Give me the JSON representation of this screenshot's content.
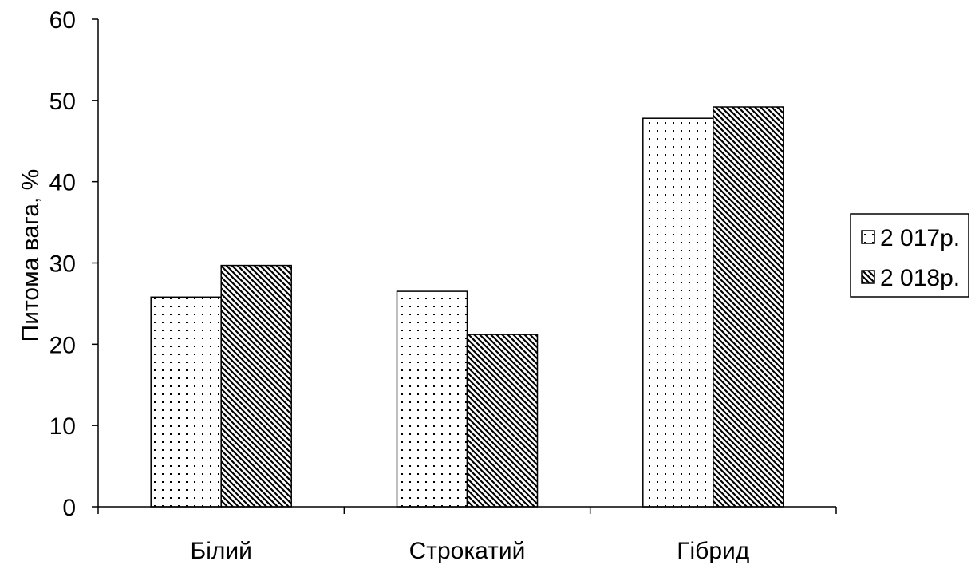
{
  "chart_data": {
    "type": "bar",
    "title": "",
    "xlabel": "",
    "ylabel": "Питома вага, %",
    "categories": [
      "Білий",
      "Строкатий",
      "Гібрид"
    ],
    "series": [
      {
        "name": "2 017р.",
        "values": [
          25.8,
          26.5,
          47.8
        ],
        "pattern": "dots"
      },
      {
        "name": "2 018р.",
        "values": [
          29.7,
          21.2,
          49.2
        ],
        "pattern": "diagonal-hatch"
      }
    ],
    "ylim": [
      0,
      60
    ],
    "yticks": [
      "0",
      "10",
      "20",
      "30",
      "40",
      "50",
      "60"
    ],
    "grid": false,
    "legend_position": "right"
  }
}
